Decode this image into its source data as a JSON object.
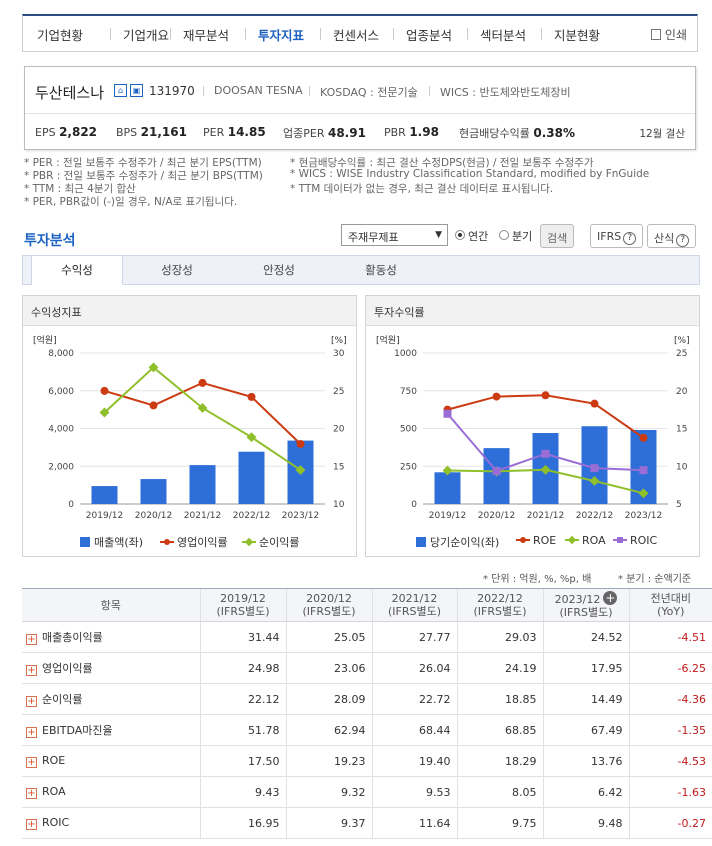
{
  "nav": {
    "items": [
      "기업현황",
      "기업개요",
      "재무분석",
      "투자지표",
      "컨센서스",
      "업종분석",
      "섹터분석",
      "지분현황"
    ],
    "active": 3,
    "print_label": "인쇄"
  },
  "company": {
    "name": "두산테스나",
    "code": "131970",
    "name_en": "DOOSAN TESNA",
    "market": "KOSDAQ : 전문기술",
    "wics": "WICS : 반도체와반도체장비",
    "stats": {
      "eps_label": "EPS",
      "eps": "2,822",
      "bps_label": "BPS",
      "bps": "21,161",
      "per_label": "PER",
      "per": "14.85",
      "sector_per_label": "업종PER",
      "sector_per": "48.91",
      "pbr_label": "PBR",
      "pbr": "1.98",
      "div_label": "현금배당수익률",
      "div": "0.38%"
    },
    "settlement": "12월 결산"
  },
  "notes": [
    "* PER : 전일 보통주 수정주가 / 최근 분기 EPS(TTM)",
    "* PBR : 전일 보통주 수정주가 / 최근 분기 BPS(TTM)",
    "* TTM : 최근 4분기 합산",
    "* PER, PBR값이 (-)일 경우, N/A로 표기됩니다.",
    "* 현금배당수익률 : 최근 결산 수정DPS(현금) / 전일 보통주 수정주가",
    "* WICS : WISE Industry Classification Standard, modified by FnGuide",
    "* TTM 데이터가 없는 경우, 최근 결산 데이터로 표시됩니다."
  ],
  "section": {
    "title": "투자분석",
    "select_value": "주재무제표",
    "radio_annual": "연간",
    "radio_quarter": "분기",
    "search_button": "검색",
    "ifrs_button": "IFRS",
    "formula_button": "산식"
  },
  "tabs": [
    "수익성",
    "성장성",
    "안정성",
    "활동성"
  ],
  "panels": {
    "left_title": "수익성지표",
    "right_title": "투자수익률"
  },
  "chart_data": [
    {
      "type": "bar",
      "title": "수익성지표",
      "categories": [
        "2019/12",
        "2020/12",
        "2021/12",
        "2022/12",
        "2023/12"
      ],
      "y_left_unit": "[억원]",
      "y_right_unit": "[%]",
      "y_left_ticks": [
        "0",
        "2,000",
        "4,000",
        "6,000",
        "8,000"
      ],
      "y_right_ticks": [
        "10",
        "15",
        "20",
        "25",
        "30"
      ],
      "y_left_range": [
        0,
        8000
      ],
      "y_right_range": [
        10,
        30
      ],
      "series": [
        {
          "name": "매출액(좌)",
          "type": "bar",
          "axis": "left",
          "color": "#2d6ed8",
          "values": [
            950,
            1320,
            2060,
            2770,
            3360
          ]
        },
        {
          "name": "영업이익률",
          "type": "line",
          "axis": "right",
          "color": "#cc3a12",
          "marker": "circle",
          "values": [
            24.98,
            23.06,
            26.04,
            24.19,
            17.95
          ]
        },
        {
          "name": "순이익률",
          "type": "line",
          "axis": "right",
          "color": "#8fbf2a",
          "marker": "diamond",
          "values": [
            22.12,
            28.09,
            22.72,
            18.85,
            14.49
          ]
        }
      ]
    },
    {
      "type": "bar",
      "title": "투자수익률",
      "categories": [
        "2019/12",
        "2020/12",
        "2021/12",
        "2022/12",
        "2023/12"
      ],
      "y_left_unit": "[억원]",
      "y_right_unit": "[%]",
      "y_left_ticks": [
        "0",
        "250",
        "500",
        "750",
        "1000"
      ],
      "y_right_ticks": [
        "5",
        "10",
        "15",
        "20",
        "25"
      ],
      "y_left_range": [
        0,
        1000
      ],
      "y_right_range": [
        5,
        25
      ],
      "series": [
        {
          "name": "당기순이익(좌)",
          "type": "bar",
          "axis": "left",
          "color": "#2d6ed8",
          "values": [
            210,
            370,
            470,
            515,
            490
          ]
        },
        {
          "name": "ROE",
          "type": "line",
          "axis": "right",
          "color": "#cc3a12",
          "marker": "circle",
          "values": [
            17.5,
            19.23,
            19.4,
            18.29,
            13.76
          ]
        },
        {
          "name": "ROA",
          "type": "line",
          "axis": "right",
          "color": "#8fbf2a",
          "marker": "diamond",
          "values": [
            9.43,
            9.32,
            9.53,
            8.05,
            6.42
          ]
        },
        {
          "name": "ROIC",
          "type": "line",
          "axis": "right",
          "color": "#9a6dd6",
          "marker": "square",
          "values": [
            16.95,
            9.37,
            11.64,
            9.75,
            9.48
          ]
        }
      ]
    }
  ],
  "units": {
    "unit_note": "* 단위 : 억원, %, %p, 배",
    "quarter_note": "* 분기 : 순액기준"
  },
  "table": {
    "headers": {
      "item": "항목",
      "years": [
        "2019/12",
        "2020/12",
        "2021/12",
        "2022/12",
        "2023/12"
      ],
      "basis": "(IFRS별도)",
      "yoy": "전년대비",
      "yoy_sub": "(YoY)"
    },
    "rows": [
      {
        "name": "매출총이익률",
        "values": [
          "31.44",
          "25.05",
          "27.77",
          "29.03",
          "24.52"
        ],
        "yoy": "-4.51"
      },
      {
        "name": "영업이익률",
        "values": [
          "24.98",
          "23.06",
          "26.04",
          "24.19",
          "17.95"
        ],
        "yoy": "-6.25"
      },
      {
        "name": "순이익률",
        "values": [
          "22.12",
          "28.09",
          "22.72",
          "18.85",
          "14.49"
        ],
        "yoy": "-4.36"
      },
      {
        "name": "EBITDA마진율",
        "values": [
          "51.78",
          "62.94",
          "68.44",
          "68.85",
          "67.49"
        ],
        "yoy": "-1.35"
      },
      {
        "name": "ROE",
        "values": [
          "17.50",
          "19.23",
          "19.40",
          "18.29",
          "13.76"
        ],
        "yoy": "-4.53"
      },
      {
        "name": "ROA",
        "values": [
          "9.43",
          "9.32",
          "9.53",
          "8.05",
          "6.42"
        ],
        "yoy": "-1.63"
      },
      {
        "name": "ROIC",
        "values": [
          "16.95",
          "9.37",
          "11.64",
          "9.75",
          "9.48"
        ],
        "yoy": "-0.27"
      }
    ]
  }
}
